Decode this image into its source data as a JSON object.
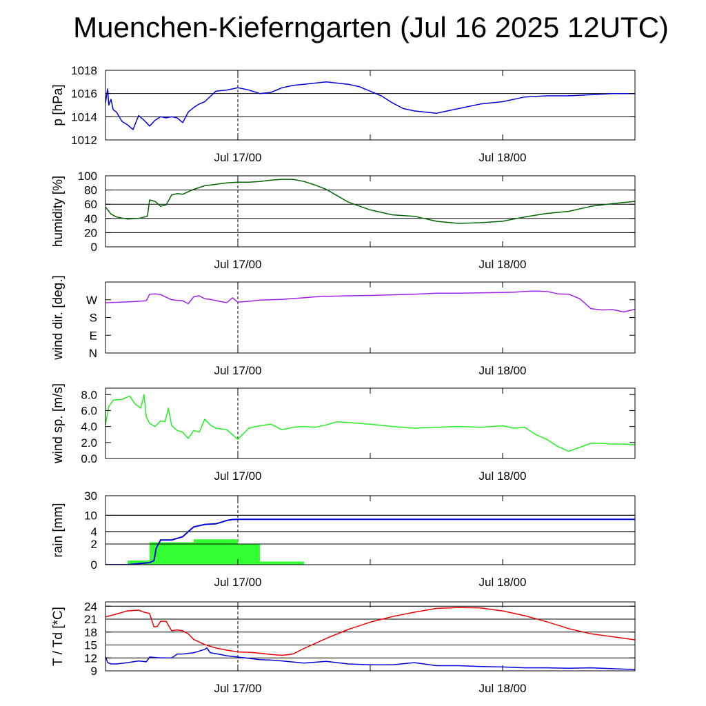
{
  "title": "Muenchen-Kieferngarten (Jul 16 2025 12UTC)",
  "x_ticks": [
    "Jul 17/00",
    "Jul 18/00"
  ],
  "colors": {
    "pressure": "#0000dd",
    "humidity": "#006400",
    "wind_dir": "#a020f0",
    "wind_speed": "#22ee22",
    "rain_bar": "#33ff33",
    "rain_sum": "#0000dd",
    "temperature": "#ee0000",
    "dewpoint": "#0000dd"
  },
  "chart_data": [
    {
      "id": "pressure",
      "type": "line",
      "ylabel": "p [hPa]",
      "xlim_hours": [
        -12,
        36
      ],
      "ylim": [
        1012,
        1018
      ],
      "yticks": [
        1012,
        1014,
        1016,
        1018
      ],
      "ytick_labels": [
        "1012",
        "1014",
        "1016",
        "1018"
      ],
      "grid": [
        1014,
        1016
      ],
      "series": [
        {
          "color_key": "pressure",
          "x": [
            -12,
            -11.8,
            -11.7,
            -11.5,
            -11.3,
            -11,
            -10.5,
            -10,
            -9.5,
            -9,
            -8.5,
            -8,
            -7.5,
            -7,
            -6.5,
            -6,
            -5.5,
            -5,
            -4.5,
            -4,
            -3.5,
            -3,
            -2,
            -1,
            0,
            0.5,
            1,
            2,
            3,
            4,
            5,
            6,
            7,
            8,
            9,
            10,
            11,
            12,
            13,
            14,
            15,
            16,
            17,
            18,
            19,
            20,
            22,
            24,
            26,
            28,
            30,
            32,
            34,
            36
          ],
          "y": [
            1015.2,
            1016.4,
            1015.0,
            1015.5,
            1014.6,
            1014.4,
            1013.6,
            1013.3,
            1012.9,
            1014.1,
            1013.7,
            1013.2,
            1013.7,
            1014.0,
            1013.9,
            1014.0,
            1013.9,
            1013.5,
            1014.4,
            1014.8,
            1015.1,
            1015.3,
            1016.2,
            1016.3,
            1016.5,
            1016.4,
            1016.3,
            1016.0,
            1016.1,
            1016.5,
            1016.7,
            1016.8,
            1016.9,
            1017.0,
            1016.9,
            1016.8,
            1016.6,
            1016.2,
            1015.8,
            1015.2,
            1014.7,
            1014.5,
            1014.4,
            1014.3,
            1014.5,
            1014.7,
            1015.1,
            1015.3,
            1015.7,
            1015.8,
            1015.8,
            1015.9,
            1016.0,
            1016.0
          ]
        }
      ]
    },
    {
      "id": "humidity",
      "type": "line",
      "ylabel": "humidity [%]",
      "xlim_hours": [
        -12,
        36
      ],
      "ylim": [
        0,
        100
      ],
      "yticks": [
        0,
        20,
        40,
        60,
        80,
        100
      ],
      "ytick_labels": [
        "0",
        "20",
        "40",
        "60",
        "80",
        "100"
      ],
      "grid": [
        20,
        40,
        60,
        80
      ],
      "series": [
        {
          "color_key": "humidity",
          "x": [
            -12,
            -11.5,
            -11,
            -10,
            -9,
            -8.2,
            -8,
            -7.5,
            -7,
            -6.5,
            -6,
            -5.5,
            -5,
            -4,
            -3,
            -2,
            -1,
            0,
            1,
            2,
            3,
            4,
            5,
            6,
            7,
            8,
            9,
            10,
            12,
            14,
            16,
            18,
            20,
            22,
            24,
            26,
            28,
            30,
            32,
            34,
            36
          ],
          "y": [
            56,
            46,
            42,
            39,
            40,
            43,
            66,
            64,
            57,
            59,
            73,
            75,
            74,
            81,
            86,
            88,
            90,
            91,
            91,
            92,
            94,
            95,
            95,
            92,
            87,
            81,
            72,
            63,
            52,
            45,
            43,
            36,
            33,
            34,
            36,
            42,
            47,
            50,
            57,
            61,
            64
          ]
        }
      ]
    },
    {
      "id": "wind_direction",
      "type": "line",
      "ylabel": "wind dir. [deg.]",
      "xlim_hours": [
        -12,
        36
      ],
      "ylim": [
        0,
        360
      ],
      "yticks": [
        0,
        90,
        180,
        270
      ],
      "ytick_labels": [
        "N",
        "E",
        "S",
        "W"
      ],
      "grid": [],
      "series": [
        {
          "color_key": "wind_dir",
          "x": [
            -12,
            -11,
            -10,
            -9,
            -8.3,
            -8,
            -7.5,
            -7,
            -6,
            -5,
            -4.5,
            -4,
            -3.5,
            -3,
            -2.5,
            -2,
            -1.5,
            -1,
            -0.5,
            0,
            1,
            2,
            3,
            4,
            5,
            6,
            7,
            8,
            10,
            12,
            14,
            16,
            18,
            20,
            22,
            24,
            25,
            26,
            27,
            28,
            29,
            30,
            31,
            32,
            33,
            34,
            35,
            36
          ],
          "y": [
            254,
            257,
            259,
            262,
            265,
            298,
            300,
            296,
            270,
            265,
            250,
            285,
            290,
            275,
            272,
            266,
            260,
            255,
            280,
            258,
            262,
            268,
            270,
            272,
            276,
            280,
            285,
            287,
            290,
            292,
            295,
            298,
            303,
            303,
            305,
            307,
            308,
            312,
            314,
            312,
            300,
            298,
            275,
            225,
            218,
            220,
            208,
            222
          ]
        }
      ]
    },
    {
      "id": "wind_speed",
      "type": "line",
      "ylabel": "wind sp. [m/s]",
      "xlim_hours": [
        -12,
        36
      ],
      "ylim": [
        0,
        8.8
      ],
      "yticks": [
        0,
        2,
        4,
        6,
        8
      ],
      "ytick_labels": [
        "0.0",
        "2.0",
        "4.0",
        "6.0",
        "8.0"
      ],
      "grid": [],
      "series": [
        {
          "color_key": "wind_speed",
          "x": [
            -12,
            -11.7,
            -11.3,
            -10.5,
            -9.8,
            -9.3,
            -8.8,
            -8.5,
            -8.3,
            -8,
            -7.5,
            -7,
            -6.6,
            -6.3,
            -6,
            -5.5,
            -5,
            -4.5,
            -4,
            -3.5,
            -3,
            -2.5,
            -2,
            -1,
            0,
            1,
            2,
            3,
            4,
            5,
            6,
            7,
            8,
            9,
            10,
            12,
            14,
            16,
            18,
            20,
            22,
            24,
            25,
            26,
            27,
            28,
            29,
            30,
            31,
            32,
            33,
            34,
            35,
            36
          ],
          "y": [
            4.2,
            6.5,
            7.3,
            7.4,
            7.8,
            6.8,
            6.3,
            8.0,
            5.2,
            4.4,
            4.0,
            4.7,
            4.6,
            6.3,
            4.1,
            3.5,
            3.3,
            2.5,
            3.5,
            3.3,
            4.9,
            4.2,
            3.8,
            3.6,
            2.4,
            3.8,
            4.1,
            4.3,
            3.6,
            3.9,
            4.0,
            3.9,
            4.2,
            4.6,
            4.5,
            4.3,
            4.0,
            3.8,
            3.9,
            4.0,
            3.9,
            4.1,
            3.8,
            3.9,
            3.0,
            2.4,
            1.5,
            0.9,
            1.4,
            1.9,
            1.9,
            1.8,
            1.8,
            1.7
          ]
        }
      ]
    },
    {
      "id": "rain",
      "type": "bar",
      "ylabel": "rain [mm]",
      "xlim_hours": [
        -12,
        36
      ],
      "ylim": [
        0,
        30
      ],
      "yticks": [
        0,
        2,
        4,
        10,
        30
      ],
      "ytick_labels": [
        "0",
        "2",
        "4",
        "10",
        "30"
      ],
      "grid": [
        2,
        4,
        10
      ],
      "bars": [
        {
          "x0": -10,
          "x1": -8,
          "value": 0.4
        },
        {
          "x0": -8,
          "x1": -4,
          "value": 2.2
        },
        {
          "x0": -4,
          "x1": 0,
          "value": 2.6
        },
        {
          "x0": 0,
          "x1": 2,
          "value": 2.0
        },
        {
          "x0": 2,
          "x1": 6,
          "value": 0.3
        }
      ],
      "accumulated": {
        "color_key": "rain_sum",
        "x": [
          -12,
          -10,
          -8,
          -7.6,
          -7.4,
          -7,
          -6,
          -5,
          -4.5,
          -4,
          -3,
          -2,
          -1.5,
          -1,
          -0.5,
          0,
          2,
          36
        ],
        "y": [
          0,
          0,
          0.2,
          0.4,
          1.6,
          2.5,
          2.5,
          3.0,
          4.0,
          5.2,
          6.0,
          6.2,
          6.8,
          7.5,
          7.9,
          8.0,
          8.0,
          8.0
        ]
      }
    },
    {
      "id": "temperature",
      "type": "line",
      "ylabel": "T / Td [*C]",
      "xlim_hours": [
        -12,
        36
      ],
      "ylim": [
        9,
        25
      ],
      "yticks": [
        9,
        12,
        15,
        18,
        21,
        24
      ],
      "ytick_labels": [
        "9",
        "12",
        "15",
        "18",
        "21",
        "24"
      ],
      "grid": [
        12,
        15,
        18,
        21,
        24
      ],
      "series": [
        {
          "color_key": "temperature",
          "x": [
            -12,
            -11,
            -10,
            -9,
            -8.5,
            -8,
            -7.6,
            -7.3,
            -7,
            -6.5,
            -6,
            -5.5,
            -5,
            -4.5,
            -4,
            -3,
            -2,
            -1,
            0,
            1,
            2,
            3,
            4,
            5,
            6,
            8,
            10,
            12,
            14,
            16,
            18,
            20,
            22,
            24,
            26,
            28,
            30,
            32,
            34,
            36
          ],
          "y": [
            21.5,
            22.2,
            22.9,
            23.1,
            22.6,
            22.3,
            19.2,
            19.3,
            20.5,
            20.5,
            18.3,
            18.5,
            18.3,
            17.6,
            16.3,
            15.1,
            14.3,
            13.8,
            13.4,
            13.3,
            13.1,
            12.8,
            12.6,
            12.9,
            14.2,
            16.5,
            18.6,
            20.3,
            21.6,
            22.6,
            23.5,
            23.7,
            23.6,
            22.9,
            21.8,
            20.4,
            18.8,
            17.6,
            16.9,
            16.2
          ]
        },
        {
          "color_key": "dewpoint",
          "x": [
            -12,
            -11.8,
            -11.5,
            -11,
            -10,
            -9,
            -8.3,
            -8,
            -7,
            -6,
            -5.5,
            -5,
            -4,
            -3,
            -2.8,
            -2.5,
            -2,
            -1,
            0,
            1,
            2,
            3,
            4,
            6,
            8,
            10,
            12,
            14,
            16,
            18,
            20,
            22,
            24,
            26,
            28,
            30,
            32,
            34,
            36
          ],
          "y": [
            12.3,
            10.9,
            10.6,
            10.6,
            10.9,
            11.3,
            11.1,
            12.2,
            12.0,
            12.0,
            12.9,
            12.9,
            13.2,
            14.0,
            14.3,
            13.2,
            13.0,
            12.5,
            12.2,
            11.9,
            11.6,
            11.5,
            11.3,
            10.8,
            11.2,
            10.6,
            10.4,
            10.4,
            10.9,
            10.2,
            10.2,
            10.0,
            9.9,
            9.7,
            9.7,
            9.6,
            9.7,
            9.5,
            9.3
          ]
        }
      ]
    }
  ]
}
